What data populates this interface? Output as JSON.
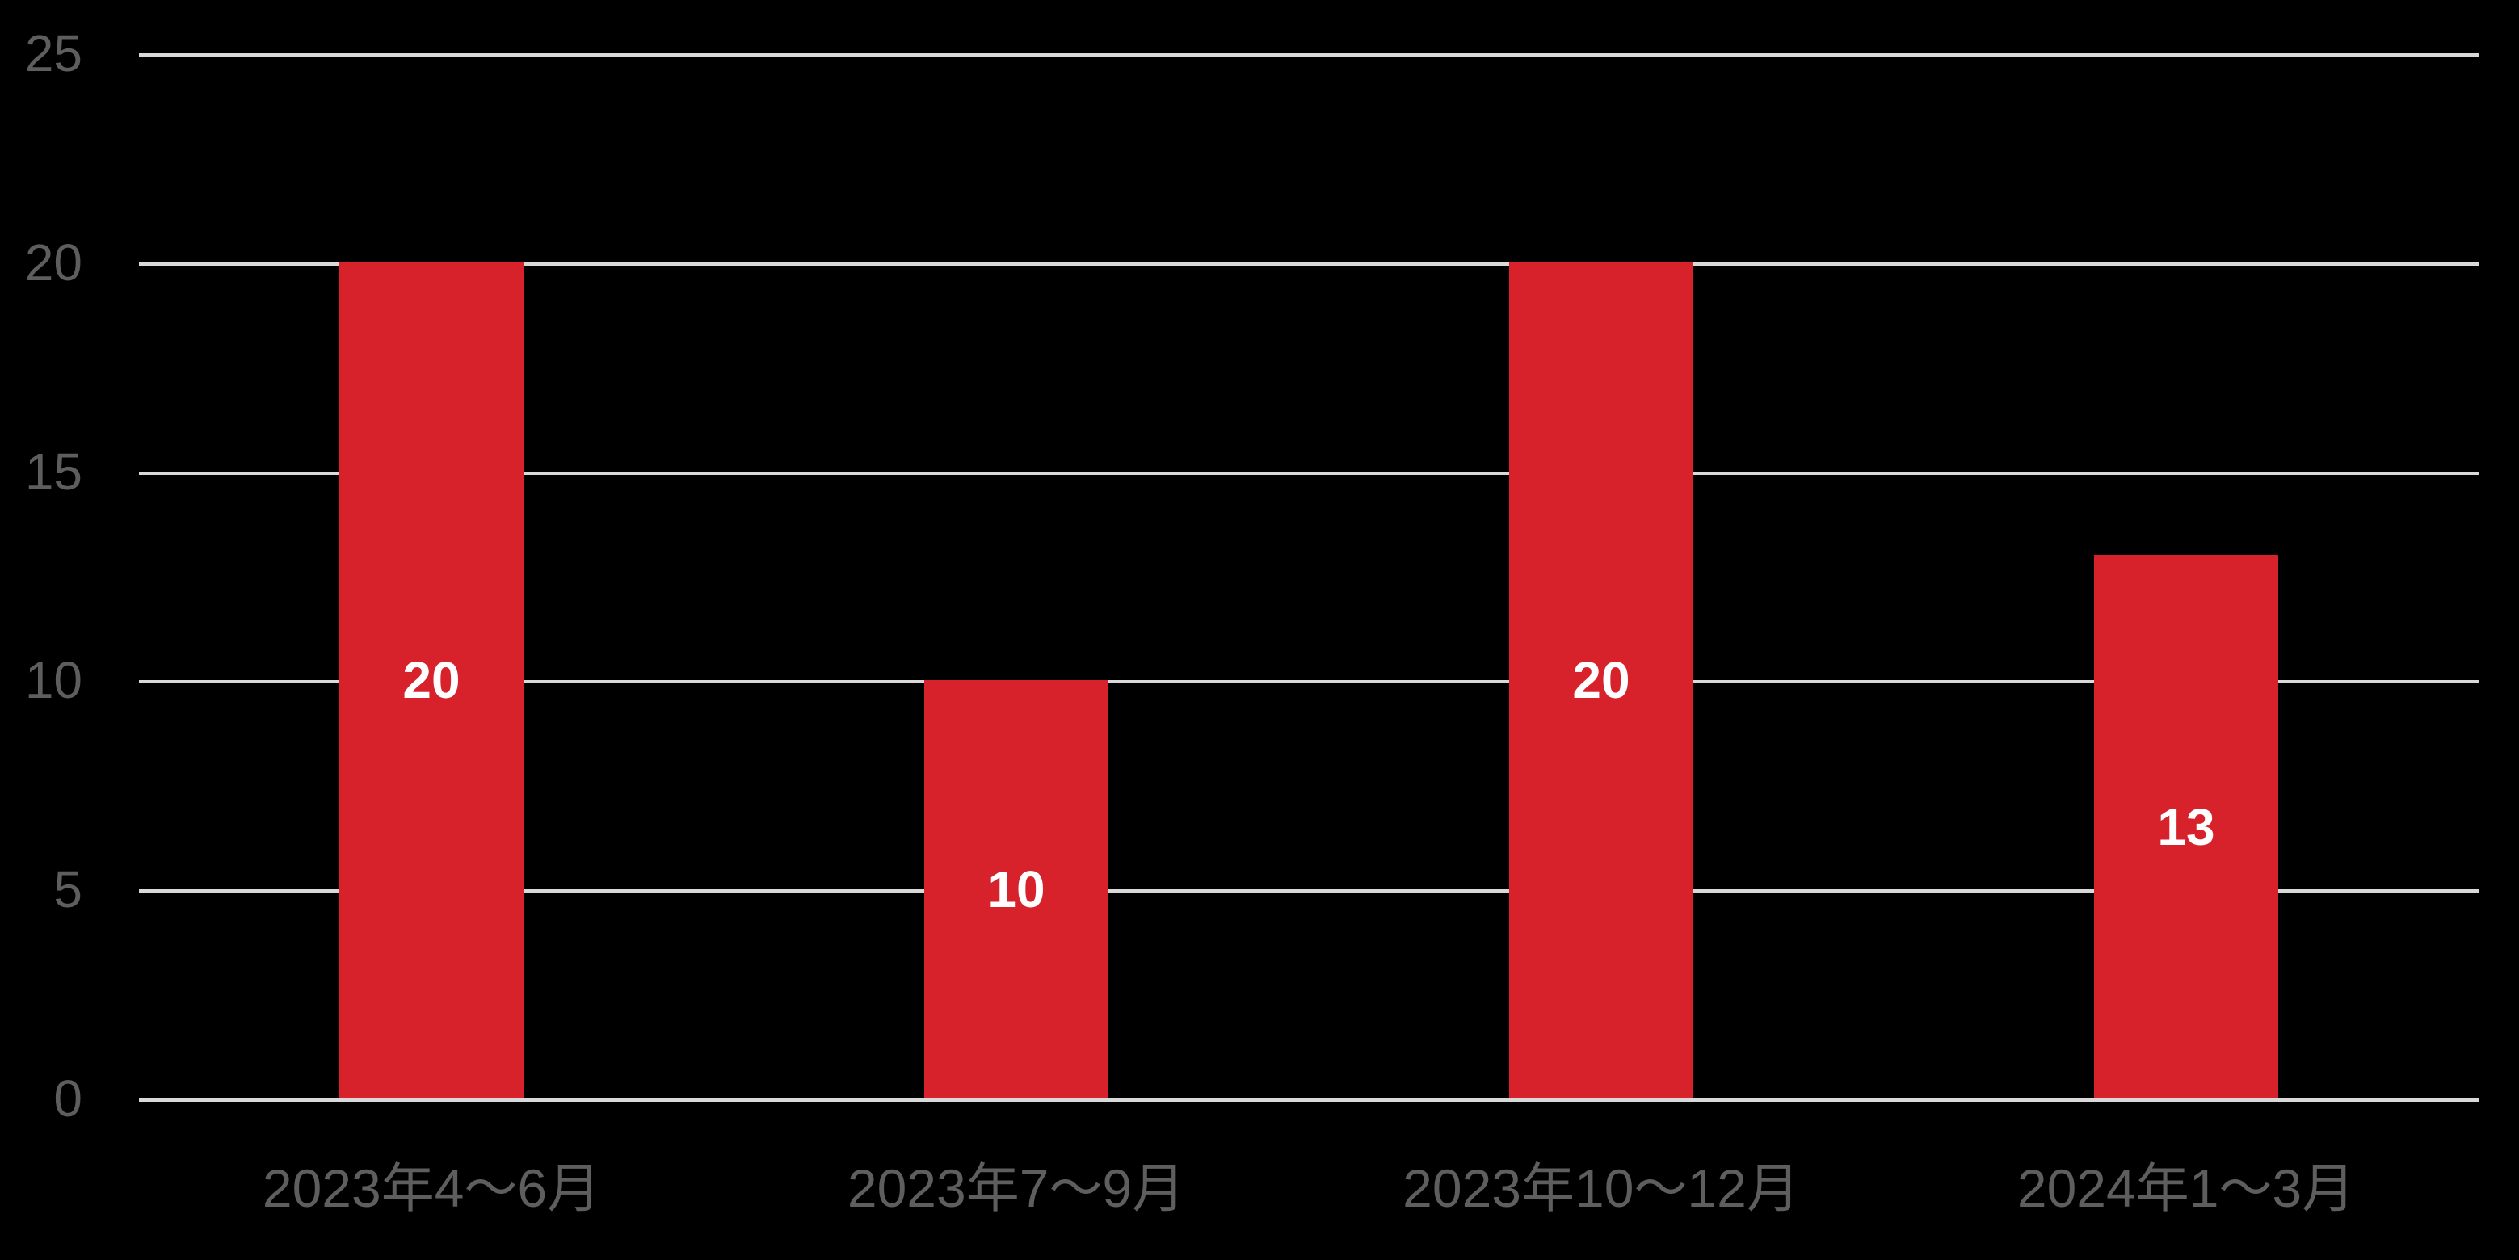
{
  "chart_data": {
    "type": "bar",
    "categories": [
      "2023年4〜6月",
      "2023年7〜9月",
      "2023年10〜12月",
      "2024年1〜3月"
    ],
    "values": [
      20,
      10,
      20,
      13
    ],
    "data_labels": [
      "20",
      "10",
      "20",
      "13"
    ],
    "title": "",
    "xlabel": "",
    "ylabel": "",
    "ylim": [
      0,
      25
    ],
    "yticks": [
      0,
      5,
      10,
      15,
      20,
      25
    ],
    "grid": true,
    "legend": false,
    "layout_hints": {
      "gridlines": "horizontal only",
      "data_label_position": "inside center of bar"
    },
    "colors": {
      "background": "#000000",
      "bar": "#D7212B",
      "gridline": "#D9D9D9",
      "axis_text": "#5E5E5E",
      "data_label": "#FFFFFF"
    }
  }
}
